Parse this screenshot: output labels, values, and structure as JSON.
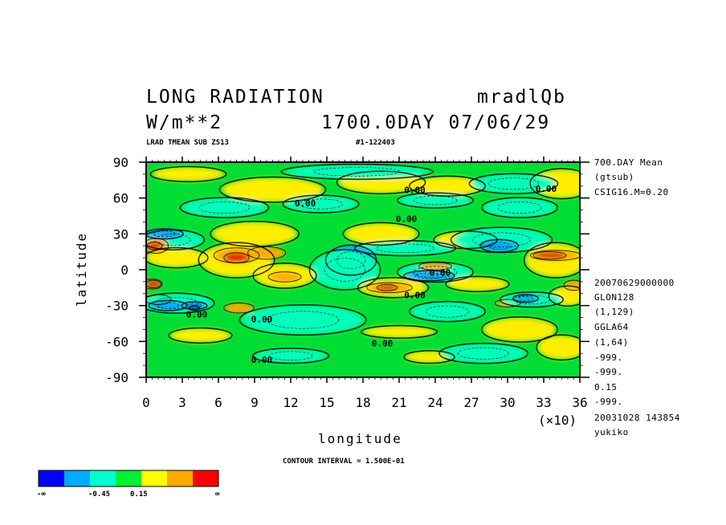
{
  "header": {
    "title": "LONG RADIATION",
    "run_id": "mradlQb",
    "units": "W/m**2",
    "time_label": "1700.0DAY 07/06/29",
    "subtitle_left": "LRAD TMEAN SUB ZS13",
    "subtitle_mid": "#1-122403"
  },
  "right_info": {
    "top": [
      "700.DAY Mean",
      "(gtsub)",
      "CSIG16.M=0.20"
    ],
    "bottom": [
      "20070629000000",
      "GLON128",
      "(1,129)",
      "GGLA64",
      "(1,64)",
      "-999.",
      "-999.",
      "0.15",
      "-999.",
      "20031028 143854",
      "yukiko"
    ]
  },
  "footer": {
    "contour_interval": "CONTOUR INTERVAL = 1.500E-01"
  },
  "chart_data": {
    "type": "heatmap",
    "title": "LONG RADIATION",
    "xlabel": "longitude",
    "ylabel": "latitude",
    "x_multiplier": "(×10)",
    "xlim": [
      0,
      36
    ],
    "ylim": [
      -90,
      90
    ],
    "x_ticks": [
      "0",
      "3",
      "6",
      "9",
      "12",
      "15",
      "18",
      "21",
      "24",
      "27",
      "30",
      "33",
      "36"
    ],
    "y_ticks": [
      "90",
      "60",
      "30",
      "0",
      "-30",
      "-60",
      "-90"
    ],
    "contour_labels": [
      {
        "text": "0.00",
        "x": 22.3,
        "y": 64
      },
      {
        "text": "0.00",
        "x": 33.2,
        "y": 65
      },
      {
        "text": "0.00",
        "x": 13.2,
        "y": 53
      },
      {
        "text": "0.00",
        "x": 21.6,
        "y": 40
      },
      {
        "text": "0.00",
        "x": 24.4,
        "y": -5
      },
      {
        "text": "0.00",
        "x": 22.3,
        "y": -24
      },
      {
        "text": "0.00",
        "x": 4.2,
        "y": -40
      },
      {
        "text": "0.00",
        "x": 9.6,
        "y": -44
      },
      {
        "text": "0.00",
        "x": 19.6,
        "y": -64
      },
      {
        "text": "0.00",
        "x": 9.6,
        "y": -78
      }
    ],
    "colorbar": {
      "colors": [
        "#0000ff",
        "#00aaff",
        "#00ffcc",
        "#00ee33",
        "#ffff00",
        "#ffaa00",
        "#ff0000"
      ],
      "labels": [
        "-∞",
        "-0.45",
        "0.15",
        "∞"
      ]
    },
    "field": {
      "base": "#00dd33",
      "regions": [
        {
          "c": "#ffee00",
          "lon": 3.5,
          "lat": 80,
          "rx": 3.0,
          "ry": 6
        },
        {
          "c": "#ffee00",
          "lon": 10.5,
          "lat": 67,
          "rx": 4.2,
          "ry": 10
        },
        {
          "c": "#ffee00",
          "lon": 19.5,
          "lat": 73,
          "rx": 3.5,
          "ry": 9
        },
        {
          "c": "#ffee00",
          "lon": 25.0,
          "lat": 70,
          "rx": 3.0,
          "ry": 8
        },
        {
          "c": "#ffee00",
          "lon": 34.5,
          "lat": 72,
          "rx": 2.5,
          "ry": 12
        },
        {
          "c": "#00ffbb",
          "lon": 17.5,
          "lat": 82,
          "rx": 6.0,
          "ry": 6
        },
        {
          "c": "#00ffbb",
          "lon": 30.5,
          "lat": 72,
          "rx": 3.5,
          "ry": 8
        },
        {
          "c": "#00ffbb",
          "lon": 6.5,
          "lat": 52,
          "rx": 3.5,
          "ry": 8
        },
        {
          "c": "#00ffbb",
          "lon": 14.5,
          "lat": 55,
          "rx": 3.0,
          "ry": 7
        },
        {
          "c": "#00ffbb",
          "lon": 24.0,
          "lat": 58,
          "rx": 3.0,
          "ry": 6
        },
        {
          "c": "#00ffbb",
          "lon": 31.0,
          "lat": 52,
          "rx": 3.0,
          "ry": 8
        },
        {
          "c": "#ffee00",
          "lon": 9.0,
          "lat": 30,
          "rx": 3.5,
          "ry": 10
        },
        {
          "c": "#ffee00",
          "lon": 19.5,
          "lat": 30,
          "rx": 3.0,
          "ry": 9
        },
        {
          "c": "#ffee00",
          "lon": 26.5,
          "lat": 25,
          "rx": 2.5,
          "ry": 7
        },
        {
          "c": "#00ffbb",
          "lon": 2.2,
          "lat": 25,
          "rx": 2.5,
          "ry": 8
        },
        {
          "c": "#00ffbb",
          "lon": 21.5,
          "lat": 18,
          "rx": 4.0,
          "ry": 6
        },
        {
          "c": "#00ffbb",
          "lon": 29.5,
          "lat": 25,
          "rx": 4.0,
          "ry": 10
        },
        {
          "c": "#00aaff",
          "lon": 1.5,
          "lat": 30,
          "rx": 1.5,
          "ry": 4
        },
        {
          "c": "#00aaff",
          "lon": 17.0,
          "lat": 8,
          "rx": 2.0,
          "ry": 12
        },
        {
          "c": "#00aaff",
          "lon": 29.3,
          "lat": 20,
          "rx": 1.5,
          "ry": 5
        },
        {
          "c": "#00ffbb",
          "lon": 16.5,
          "lat": 0,
          "rx": 2.8,
          "ry": 16
        },
        {
          "c": "#00ffbb",
          "lon": 24.0,
          "lat": -2,
          "rx": 3.0,
          "ry": 8
        },
        {
          "c": "#00aaff",
          "lon": 23.5,
          "lat": -5,
          "rx": 2.0,
          "ry": 4
        },
        {
          "c": "#ffee00",
          "lon": 2.5,
          "lat": 10,
          "rx": 2.5,
          "ry": 8
        },
        {
          "c": "#ffee00",
          "lon": 7.5,
          "lat": 8,
          "rx": 3.0,
          "ry": 14
        },
        {
          "c": "#ffee00",
          "lon": 11.5,
          "lat": -5,
          "rx": 2.5,
          "ry": 10
        },
        {
          "c": "#ffee00",
          "lon": 20.5,
          "lat": -15,
          "rx": 2.8,
          "ry": 8
        },
        {
          "c": "#ffee00",
          "lon": 34.0,
          "lat": 8,
          "rx": 2.5,
          "ry": 14
        },
        {
          "c": "#ffee00",
          "lon": 27.5,
          "lat": -12,
          "rx": 2.5,
          "ry": 6
        },
        {
          "c": "#ffee00",
          "lon": 35.0,
          "lat": -22,
          "rx": 1.5,
          "ry": 8
        },
        {
          "c": "#ffaa00",
          "lon": 0.8,
          "lat": 20,
          "rx": 1.0,
          "ry": 6
        },
        {
          "c": "#ffaa00",
          "lon": 7.5,
          "lat": 12,
          "rx": 1.8,
          "ry": 6
        },
        {
          "c": "#ffaa00",
          "lon": 10.0,
          "lat": 14,
          "rx": 1.5,
          "ry": 5
        },
        {
          "c": "#ffaa00",
          "lon": 11.5,
          "lat": -6,
          "rx": 1.3,
          "ry": 4
        },
        {
          "c": "#ffaa00",
          "lon": 20.2,
          "lat": -15,
          "rx": 1.8,
          "ry": 4
        },
        {
          "c": "#ffaa00",
          "lon": 34.0,
          "lat": 12,
          "rx": 2.0,
          "ry": 4
        },
        {
          "c": "#ffaa00",
          "lon": 0.5,
          "lat": -12,
          "rx": 0.8,
          "ry": 4
        },
        {
          "c": "#ffaa00",
          "lon": 7.7,
          "lat": -32,
          "rx": 1.2,
          "ry": 4
        },
        {
          "c": "#ffaa00",
          "lon": 1.0,
          "lat": -25,
          "rx": 1.0,
          "ry": 4
        },
        {
          "c": "#ffaa00",
          "lon": 35.5,
          "lat": -13,
          "rx": 0.8,
          "ry": 4
        },
        {
          "c": "#ffaa00",
          "lon": 24.0,
          "lat": 3,
          "rx": 1.3,
          "ry": 3
        },
        {
          "c": "#ffaa00",
          "lon": 30.0,
          "lat": -28,
          "rx": 1.0,
          "ry": 3
        },
        {
          "c": "#dd2200",
          "lon": 7.5,
          "lat": 10,
          "rx": 1.0,
          "ry": 4
        },
        {
          "c": "#dd2200",
          "lon": 33.5,
          "lat": 12,
          "rx": 1.3,
          "ry": 3
        },
        {
          "c": "#dd2200",
          "lon": 0.6,
          "lat": -12,
          "rx": 0.6,
          "ry": 3
        },
        {
          "c": "#dd2200",
          "lon": 20.0,
          "lat": -15,
          "rx": 0.8,
          "ry": 2.5
        },
        {
          "c": "#dd2200",
          "lon": 0.7,
          "lat": 20,
          "rx": 0.6,
          "ry": 3
        },
        {
          "c": "#00ffbb",
          "lon": 2.5,
          "lat": -28,
          "rx": 3.0,
          "ry": 8
        },
        {
          "c": "#00aaff",
          "lon": 1.8,
          "lat": -30,
          "rx": 1.5,
          "ry": 4
        },
        {
          "c": "#00aaff",
          "lon": 4.0,
          "lat": -30,
          "rx": 1.0,
          "ry": 3
        },
        {
          "c": "#0000ff",
          "lon": 4.0,
          "lat": -32,
          "rx": 0.4,
          "ry": 2
        },
        {
          "c": "#00ffbb",
          "lon": 13.0,
          "lat": -42,
          "rx": 5.0,
          "ry": 12
        },
        {
          "c": "#00ffbb",
          "lon": 25.0,
          "lat": -35,
          "rx": 3.0,
          "ry": 8
        },
        {
          "c": "#00ffbb",
          "lon": 32.0,
          "lat": -25,
          "rx": 2.5,
          "ry": 6
        },
        {
          "c": "#00aaff",
          "lon": 31.5,
          "lat": -24,
          "rx": 1.0,
          "ry": 3
        },
        {
          "c": "#ffee00",
          "lon": 4.5,
          "lat": -55,
          "rx": 2.5,
          "ry": 6
        },
        {
          "c": "#ffee00",
          "lon": 21.0,
          "lat": -52,
          "rx": 3.0,
          "ry": 5
        },
        {
          "c": "#ffee00",
          "lon": 31.0,
          "lat": -50,
          "rx": 3.0,
          "ry": 10
        },
        {
          "c": "#ffee00",
          "lon": 34.5,
          "lat": -65,
          "rx": 2.0,
          "ry": 10
        },
        {
          "c": "#ffee00",
          "lon": 23.5,
          "lat": -73,
          "rx": 2.0,
          "ry": 5
        },
        {
          "c": "#00ffbb",
          "lon": 28.0,
          "lat": -70,
          "rx": 3.5,
          "ry": 8
        },
        {
          "c": "#00ffbb",
          "lon": 12.0,
          "lat": -72,
          "rx": 3.0,
          "ry": 6
        }
      ]
    }
  }
}
